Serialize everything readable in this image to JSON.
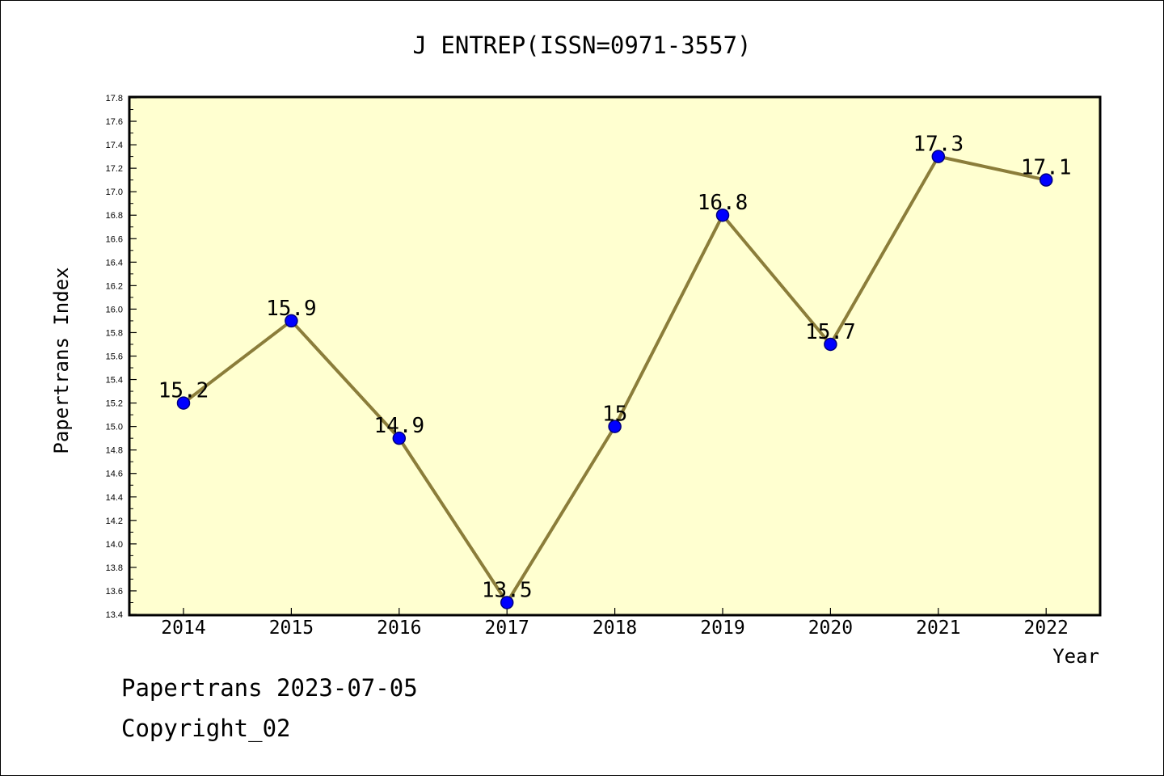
{
  "chart_data": {
    "type": "line",
    "title": "J ENTREP(ISSN=0971-3557)",
    "xlabel": "Year",
    "ylabel": "Papertrans Index",
    "categories": [
      "2014",
      "2015",
      "2016",
      "2017",
      "2018",
      "2019",
      "2020",
      "2021",
      "2022"
    ],
    "series": [
      {
        "values": [
          15.2,
          15.9,
          14.9,
          13.5,
          15.0,
          16.8,
          15.7,
          17.3,
          17.1
        ],
        "labels": [
          "15.2",
          "15.9",
          "14.9",
          "13.5",
          "15",
          "16.8",
          "15.7",
          "17.3",
          "17.1"
        ]
      }
    ],
    "ylim": [
      13.4,
      17.8
    ],
    "y_ticks": [
      "13.4",
      "13.6",
      "13.8",
      "14.0",
      "14.2",
      "14.4",
      "14.6",
      "14.8",
      "15.0",
      "15.2",
      "15.4",
      "15.6",
      "15.8",
      "16.0",
      "16.2",
      "16.4",
      "16.6",
      "16.8",
      "17.0",
      "17.2",
      "17.4",
      "17.6",
      "17.8"
    ],
    "grid": false,
    "legend": "none",
    "colors": {
      "plot_background": "#ffffd0",
      "line": "#8b7d3a",
      "marker": "#0000ff",
      "marker_edge": "#000080"
    }
  },
  "footer": {
    "date_text": "Papertrans 2023-07-05",
    "copyright_text": "Copyright_02"
  }
}
